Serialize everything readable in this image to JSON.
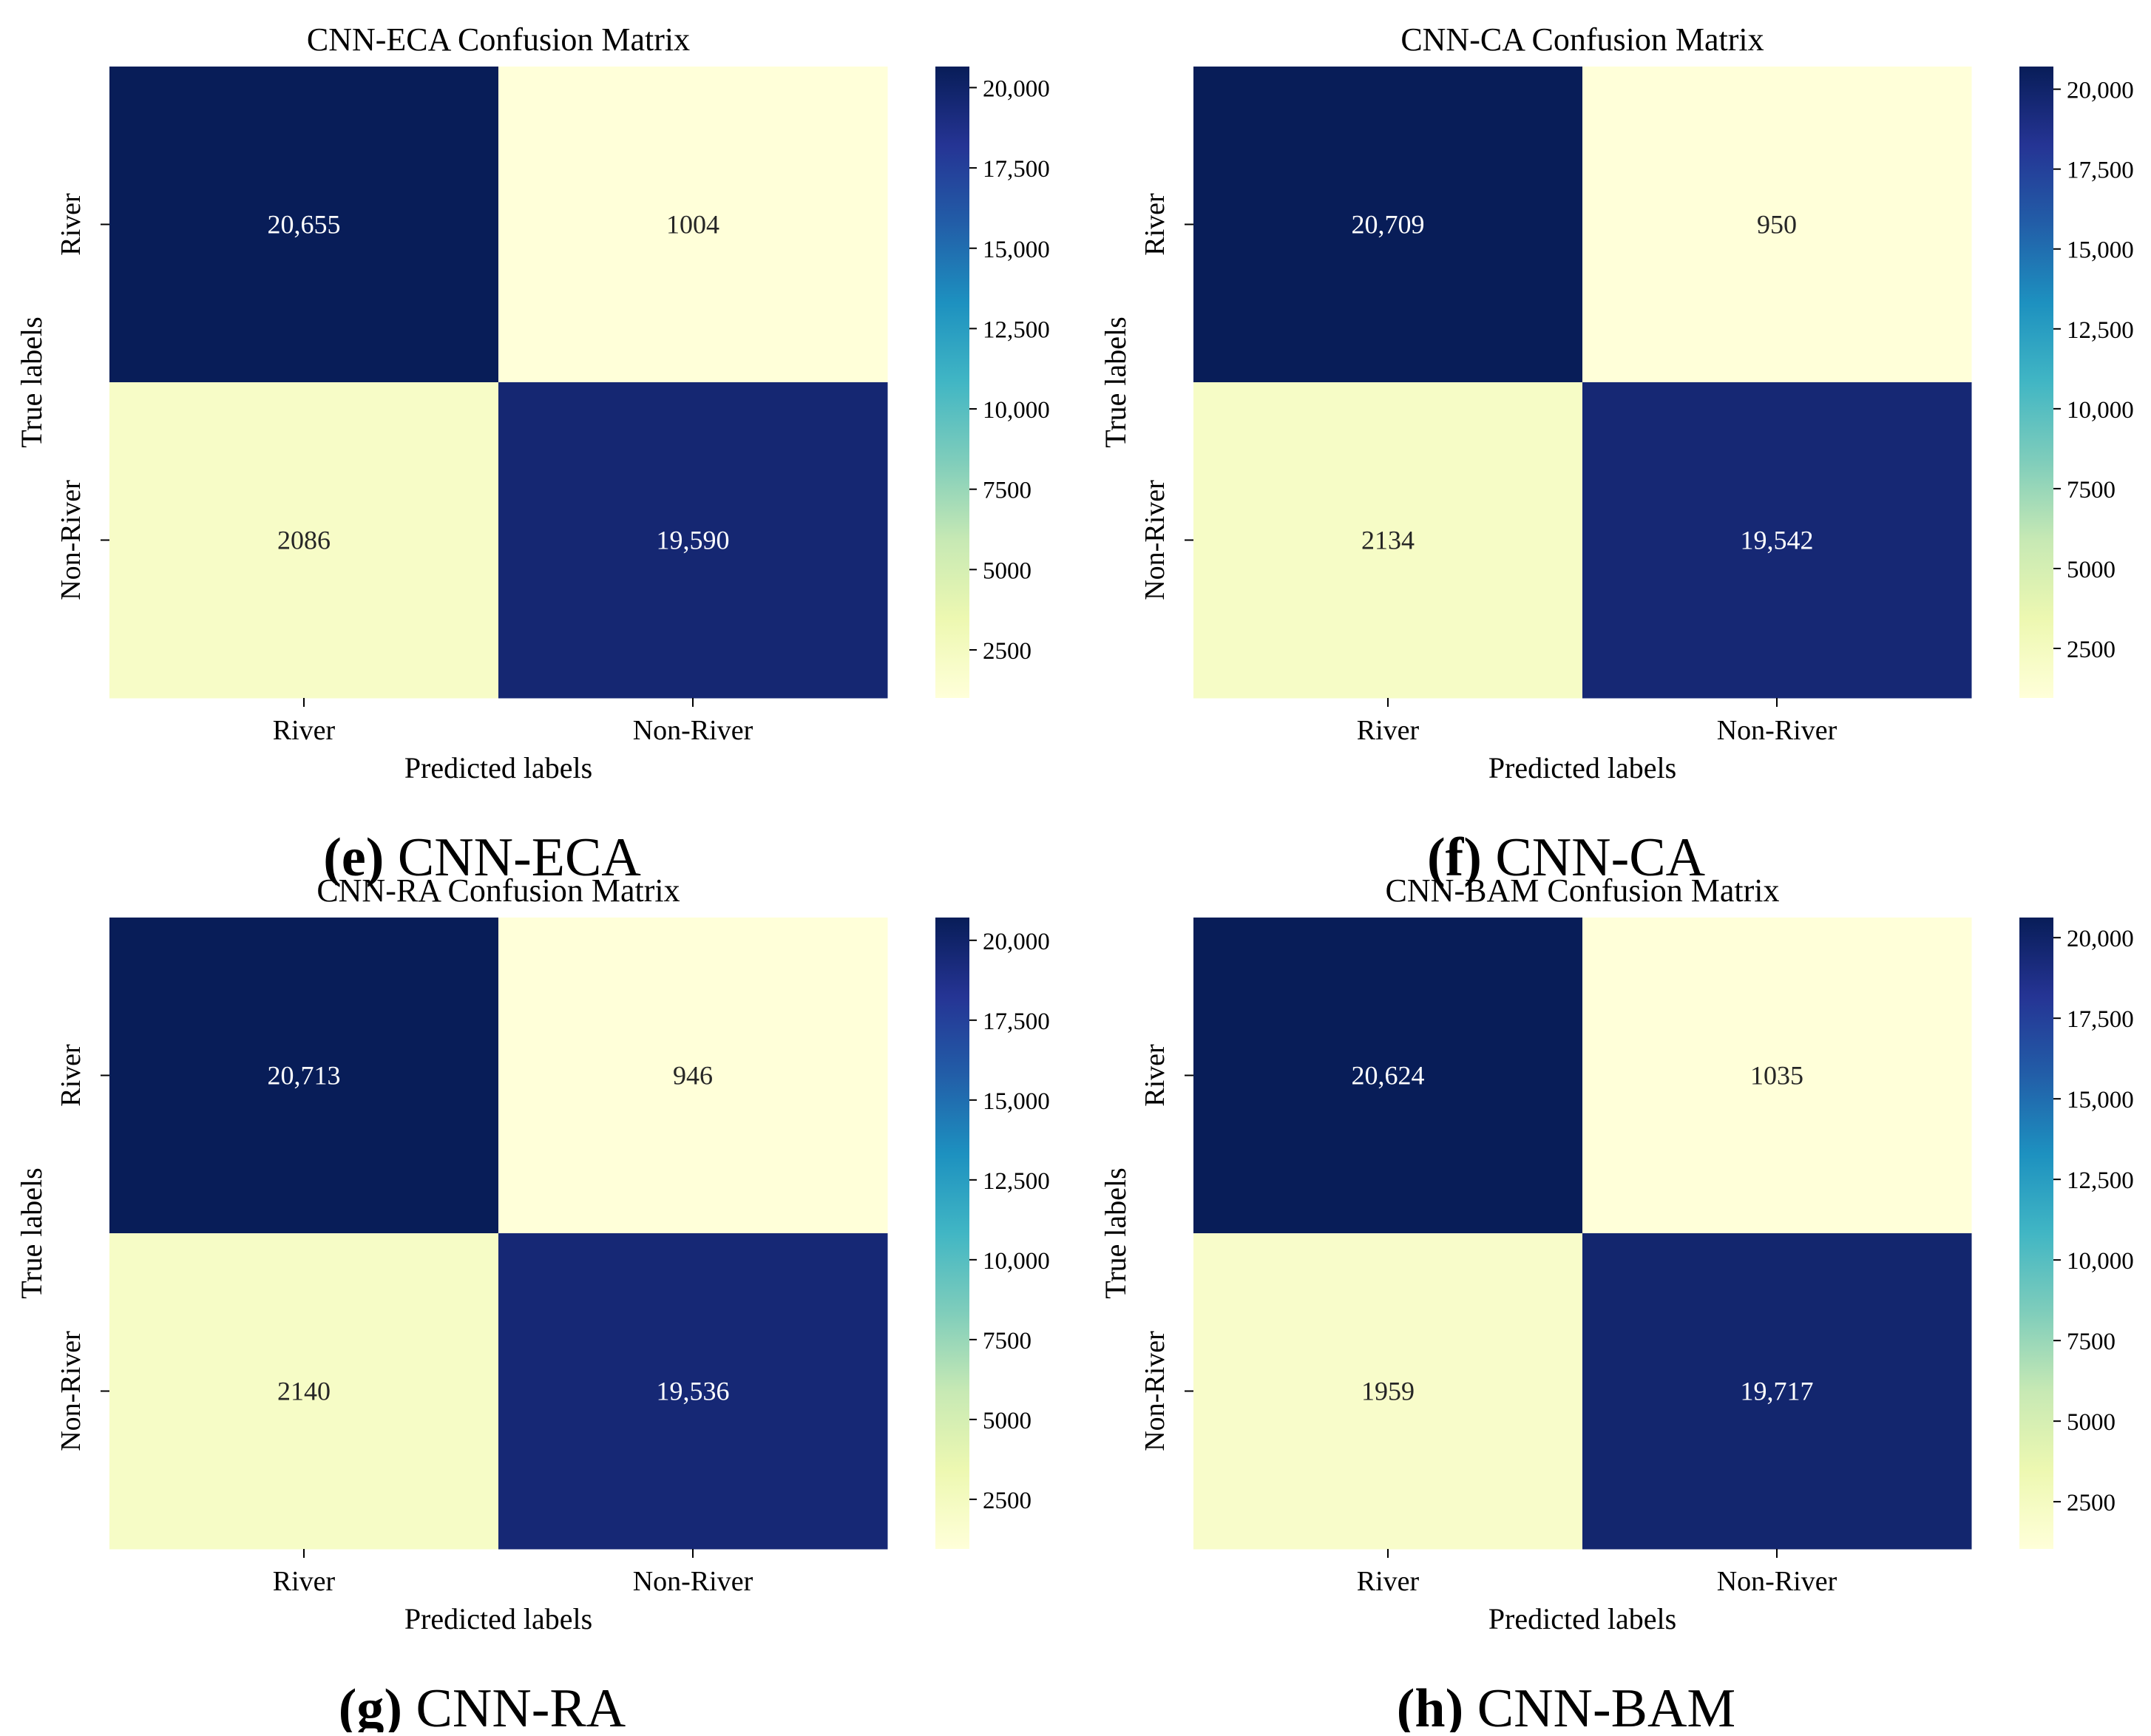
{
  "colormap": {
    "name": "YlGnBu",
    "stops": [
      "#ffffd9",
      "#edf8b1",
      "#c7e9b4",
      "#7fcdbb",
      "#41b6c4",
      "#1d91c0",
      "#225ea8",
      "#253494",
      "#081d58"
    ]
  },
  "chart_data": [
    {
      "type": "heatmap",
      "title": "CNN-ECA Confusion Matrix",
      "xlabel": "Predicted labels",
      "ylabel": "True labels",
      "x_categories": [
        "River",
        "Non-River"
      ],
      "y_categories": [
        "River",
        "Non-River"
      ],
      "values": [
        [
          20655,
          1004
        ],
        [
          2086,
          19590
        ]
      ],
      "value_labels": [
        [
          "20,655",
          "1004"
        ],
        [
          "2086",
          "19,590"
        ]
      ],
      "colorbar": {
        "vmin": 1004,
        "vmax": 20655,
        "ticks": [
          2500,
          5000,
          7500,
          10000,
          12500,
          15000,
          17500,
          20000
        ],
        "tick_labels": [
          "2500",
          "5000",
          "7500",
          "10,000",
          "12,500",
          "15,000",
          "17,500",
          "20,000"
        ]
      },
      "caption": {
        "letter": "(e)",
        "text": " CNN-ECA"
      }
    },
    {
      "type": "heatmap",
      "title": "CNN-CA Confusion Matrix",
      "xlabel": "Predicted labels",
      "ylabel": "True labels",
      "x_categories": [
        "River",
        "Non-River"
      ],
      "y_categories": [
        "River",
        "Non-River"
      ],
      "values": [
        [
          20709,
          950
        ],
        [
          2134,
          19542
        ]
      ],
      "value_labels": [
        [
          "20,709",
          "950"
        ],
        [
          "2134",
          "19,542"
        ]
      ],
      "colorbar": {
        "vmin": 950,
        "vmax": 20709,
        "ticks": [
          2500,
          5000,
          7500,
          10000,
          12500,
          15000,
          17500,
          20000
        ],
        "tick_labels": [
          "2500",
          "5000",
          "7500",
          "10,000",
          "12,500",
          "15,000",
          "17,500",
          "20,000"
        ]
      },
      "caption": {
        "letter": "(f)",
        "text": " CNN-CA"
      }
    },
    {
      "type": "heatmap",
      "title": "CNN-RA Confusion Matrix",
      "xlabel": "Predicted labels",
      "ylabel": "True labels",
      "x_categories": [
        "River",
        "Non-River"
      ],
      "y_categories": [
        "River",
        "Non-River"
      ],
      "values": [
        [
          20713,
          946
        ],
        [
          2140,
          19536
        ]
      ],
      "value_labels": [
        [
          "20,713",
          "946"
        ],
        [
          "2140",
          "19,536"
        ]
      ],
      "colorbar": {
        "vmin": 946,
        "vmax": 20713,
        "ticks": [
          2500,
          5000,
          7500,
          10000,
          12500,
          15000,
          17500,
          20000
        ],
        "tick_labels": [
          "2500",
          "5000",
          "7500",
          "10,000",
          "12,500",
          "15,000",
          "17,500",
          "20,000"
        ]
      },
      "caption": {
        "letter": "(g)",
        "text": " CNN-RA"
      }
    },
    {
      "type": "heatmap",
      "title": "CNN-BAM Confusion Matrix",
      "xlabel": "Predicted labels",
      "ylabel": "True labels",
      "x_categories": [
        "River",
        "Non-River"
      ],
      "y_categories": [
        "River",
        "Non-River"
      ],
      "values": [
        [
          20624,
          1035
        ],
        [
          1959,
          19717
        ]
      ],
      "value_labels": [
        [
          "20,624",
          "1035"
        ],
        [
          "1959",
          "19,717"
        ]
      ],
      "colorbar": {
        "vmin": 1035,
        "vmax": 20624,
        "ticks": [
          2500,
          5000,
          7500,
          10000,
          12500,
          15000,
          17500,
          20000
        ],
        "tick_labels": [
          "2500",
          "5000",
          "7500",
          "10,000",
          "12,500",
          "15,000",
          "17,500",
          "20,000"
        ]
      },
      "caption": {
        "letter": "(h)",
        "text": " CNN-BAM"
      }
    }
  ]
}
